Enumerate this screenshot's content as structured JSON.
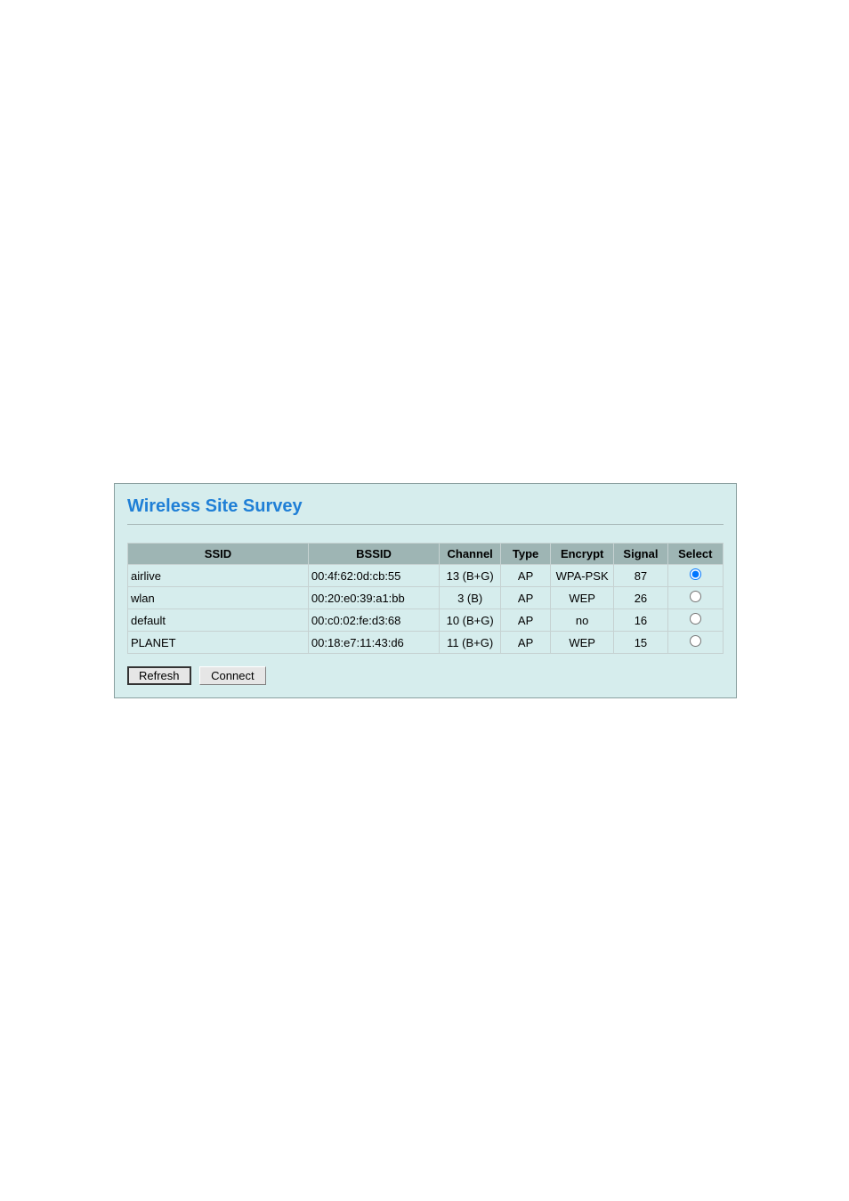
{
  "title": "Wireless Site Survey",
  "columns": {
    "ssid": "SSID",
    "bssid": "BSSID",
    "channel": "Channel",
    "type": "Type",
    "encrypt": "Encrypt",
    "signal": "Signal",
    "select": "Select"
  },
  "rows": [
    {
      "ssid": "airlive",
      "bssid": "00:4f:62:0d:cb:55",
      "channel": "13 (B+G)",
      "type": "AP",
      "encrypt": "WPA-PSK",
      "signal": "87",
      "selected": true
    },
    {
      "ssid": "wlan",
      "bssid": "00:20:e0:39:a1:bb",
      "channel": "3 (B)",
      "type": "AP",
      "encrypt": "WEP",
      "signal": "26",
      "selected": false
    },
    {
      "ssid": "default",
      "bssid": "00:c0:02:fe:d3:68",
      "channel": "10 (B+G)",
      "type": "AP",
      "encrypt": "no",
      "signal": "16",
      "selected": false
    },
    {
      "ssid": "PLANET",
      "bssid": "00:18:e7:11:43:d6",
      "channel": "11 (B+G)",
      "type": "AP",
      "encrypt": "WEP",
      "signal": "15",
      "selected": false
    }
  ],
  "buttons": {
    "refresh": "Refresh",
    "connect": "Connect"
  },
  "styles": {
    "panel_bg": "#d6eded",
    "header_bg": "#9eb5b4",
    "title_color": "#1f7fd6",
    "border_color": "#c6d2d2"
  }
}
